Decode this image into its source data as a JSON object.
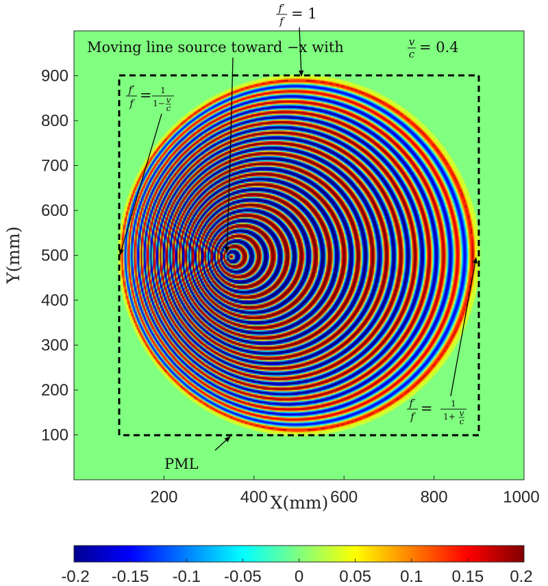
{
  "chart_data": {
    "type": "heatmap",
    "title": "",
    "xlabel": "X(mm)",
    "ylabel": "Y(mm)",
    "xlim": [
      0,
      1000
    ],
    "ylim": [
      0,
      1000
    ],
    "x_ticks": [
      200,
      400,
      600,
      800,
      1000
    ],
    "x_tick_labels": [
      "200",
      "400",
      "600",
      "800",
      "1000"
    ],
    "y_ticks": [
      100,
      200,
      300,
      400,
      500,
      600,
      700,
      800,
      900
    ],
    "y_tick_labels": [
      "100",
      "200",
      "300",
      "400",
      "500",
      "600",
      "700",
      "800",
      "900"
    ],
    "colorbar": {
      "colormap": "jet",
      "range": [
        -0.2,
        0.2
      ],
      "ticks": [
        -0.2,
        -0.15,
        -0.1,
        -0.05,
        0,
        0.05,
        0.1,
        0.15,
        0.2
      ],
      "tick_labels": [
        "-0.2",
        "-0.15",
        "-0.1",
        "-0.05",
        "0",
        "0.05",
        "0.1",
        "0.15",
        "0.2"
      ],
      "orientation": "horizontal"
    },
    "field": {
      "description_values": "concentric wave rings, Doppler-compressed toward +x",
      "source_center": [
        348,
        497
      ],
      "wavefront_center": [
        500,
        500
      ],
      "wavefront_radius": 400,
      "background_value": 0
    },
    "pml_box": {
      "x": [
        100,
        900
      ],
      "y": [
        100,
        900
      ],
      "style": "dashed"
    },
    "annotations": {
      "source": "Moving line source toward −x with",
      "source_eq_lhs_num": "v",
      "source_eq_lhs_den": "c",
      "source_eq_rhs": "= 0.4",
      "top_num": "f′",
      "top_den": "f",
      "top_rhs": "= 1",
      "left_num": "f′",
      "left_den": "f",
      "left_rhs_num": "1",
      "left_rhs_den": "1−",
      "right_num": "f′",
      "right_den": "f",
      "right_rhs_num": "1",
      "right_rhs_den": "1+",
      "vc_num": "v",
      "vc_den": "c",
      "pml": "PML"
    },
    "colors": {
      "background_field": "#80f070",
      "box": "#000000"
    }
  }
}
